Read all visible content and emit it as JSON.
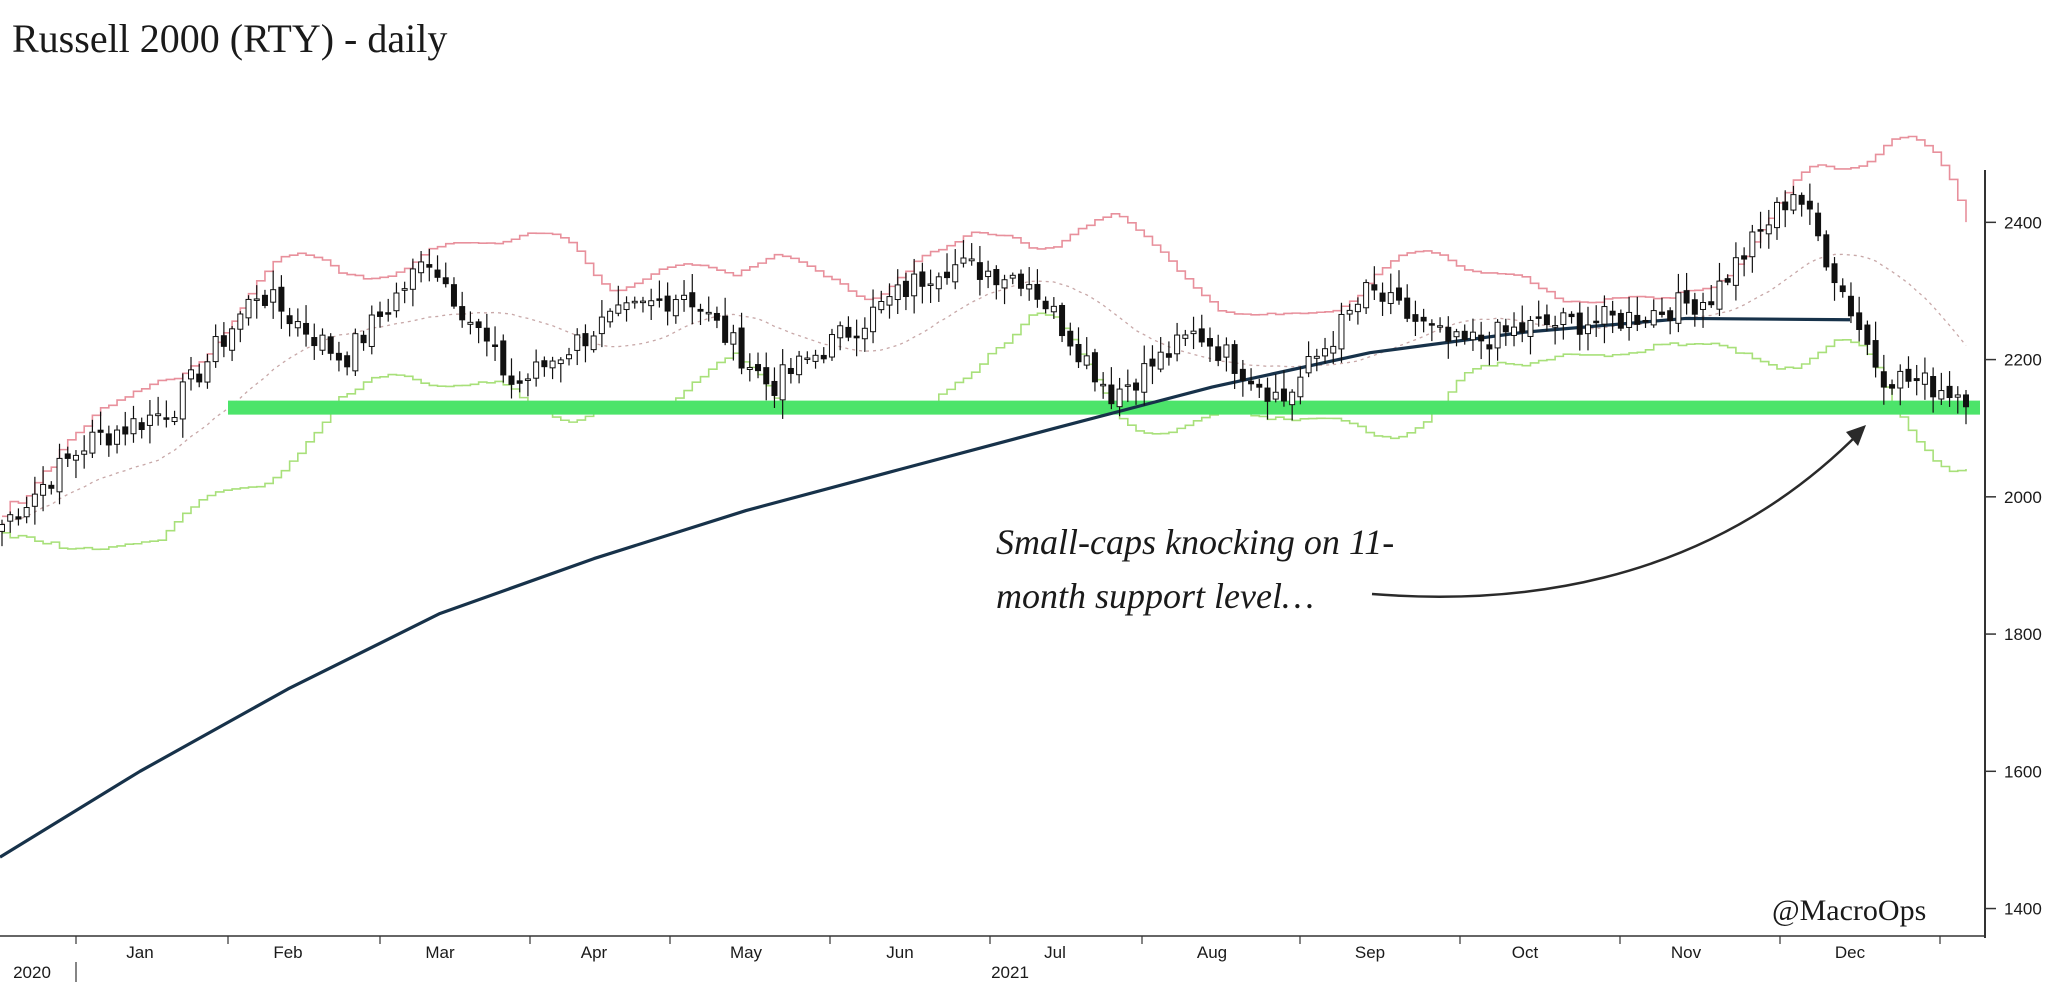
{
  "chart_data": {
    "type": "candlestick",
    "title": "Russell 2000 (RTY) - daily",
    "credit": "@MacroOps",
    "annotation": "Small-caps knocking on 11-month support level…",
    "annotation_lines": [
      "Small-caps knocking on 11-",
      "month support level…"
    ],
    "ylim": [
      1360,
      2520
    ],
    "y_ticks": [
      1400,
      1600,
      1800,
      2000,
      2200,
      2400
    ],
    "y_tick_labels": [
      "1400",
      "1600",
      "1800",
      "2000",
      "2200",
      "2400"
    ],
    "x_month_labels": [
      "Jan",
      "Feb",
      "Mar",
      "Apr",
      "May",
      "Jun",
      "Jul",
      "Aug",
      "Sep",
      "Oct",
      "Nov",
      "Dec"
    ],
    "x_year_labels": [
      "2020",
      "2021"
    ],
    "support_level": 2130,
    "series": [
      {
        "name": "",
        "color": "#17324a",
        "months": [
          "Dec 2020",
          "Jan",
          "Feb",
          "Mar",
          "Apr",
          "May",
          "Jun",
          "Jul",
          "Aug",
          "Sep",
          "Oct",
          "Nov",
          "Dec"
        ],
        "values": [
          1475,
          1600,
          1720,
          1830,
          1910,
          1980,
          2040,
          2100,
          2160,
          2210,
          2240,
          2260,
          2258
        ]
      },
      {
        "name": "",
        "color": "#e8909c",
        "kind": "upper band"
      },
      {
        "name": "",
        "color": "#a8e07a",
        "kind": "lower band"
      },
      {
        "name": "",
        "color": "#c8a8a8",
        "kind": "middle band (dotted)"
      }
    ],
    "close_path": [
      [
        "Dec 2020",
        1960
      ],
      [
        "Jan",
        2080
      ],
      [
        "Jan (late)",
        2130
      ],
      [
        "Feb",
        2300
      ],
      [
        "Feb (late)",
        2200
      ],
      [
        "Mar",
        2350
      ],
      [
        "Mar (mid)",
        2160
      ],
      [
        "Apr",
        2250
      ],
      [
        "Apr (late)",
        2300
      ],
      [
        "May",
        2160
      ],
      [
        "May (late)",
        2250
      ],
      [
        "Jun",
        2340
      ],
      [
        "Jun (late)",
        2320
      ],
      [
        "Jul",
        2150
      ],
      [
        "Jul (late)",
        2240
      ],
      [
        "Aug",
        2140
      ],
      [
        "Aug (late)",
        2300
      ],
      [
        "Sep",
        2220
      ],
      [
        "Sep (late)",
        2250
      ],
      [
        "Oct",
        2260
      ],
      [
        "Oct (late)",
        2290
      ],
      [
        "Nov",
        2450
      ],
      [
        "Nov (late)",
        2180
      ],
      [
        "Dec",
        2150
      ]
    ]
  }
}
